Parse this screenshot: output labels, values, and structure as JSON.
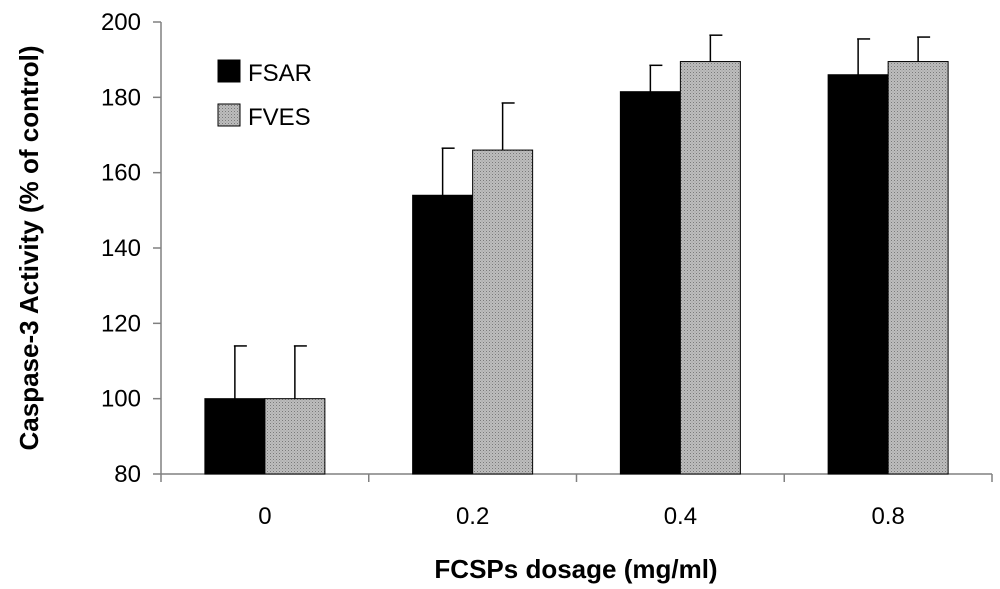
{
  "chart_data": {
    "type": "bar",
    "title": "",
    "xlabel": "FCSPs dosage (mg/ml)",
    "ylabel": "Caspase-3 Activity (% of control)",
    "categories": [
      "0",
      "0.2",
      "0.4",
      "0.8"
    ],
    "ylim": [
      80,
      200
    ],
    "yticks": [
      80,
      100,
      120,
      140,
      160,
      180,
      200
    ],
    "grid": false,
    "legend_position": "top-left",
    "series": [
      {
        "name": "FSAR",
        "color": "#000000",
        "values": [
          100,
          154,
          181.5,
          186
        ],
        "errors": [
          14,
          12.5,
          7,
          9.5
        ]
      },
      {
        "name": "FVES",
        "color": "#b0b0b0",
        "values": [
          100,
          166,
          189.5,
          189.5
        ],
        "errors": [
          14,
          12.5,
          7,
          6.5
        ]
      }
    ]
  }
}
